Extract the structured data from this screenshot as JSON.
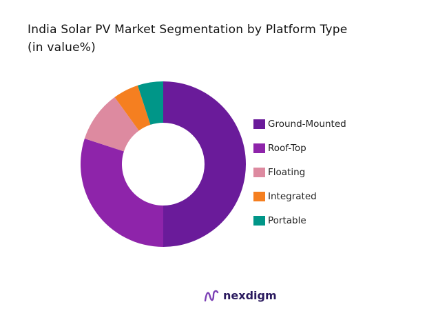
{
  "title_line1": "India Solar PV Market Segmentation by Platform Type",
  "title_line2": "(in value%)",
  "chart_data": {
    "type": "pie",
    "donut": true,
    "title": "India Solar PV Market Segmentation by Platform Type (in value%)",
    "categories": [
      "Ground-Mounted",
      "Roof-Top",
      "Floating",
      "Integrated",
      "Portable"
    ],
    "values": [
      50,
      30,
      10,
      5,
      5
    ],
    "colors": [
      "#6a1b9a",
      "#8e24aa",
      "#dd8aa0",
      "#f57f20",
      "#009688"
    ],
    "legend": "right"
  },
  "brand": "nexdigm"
}
